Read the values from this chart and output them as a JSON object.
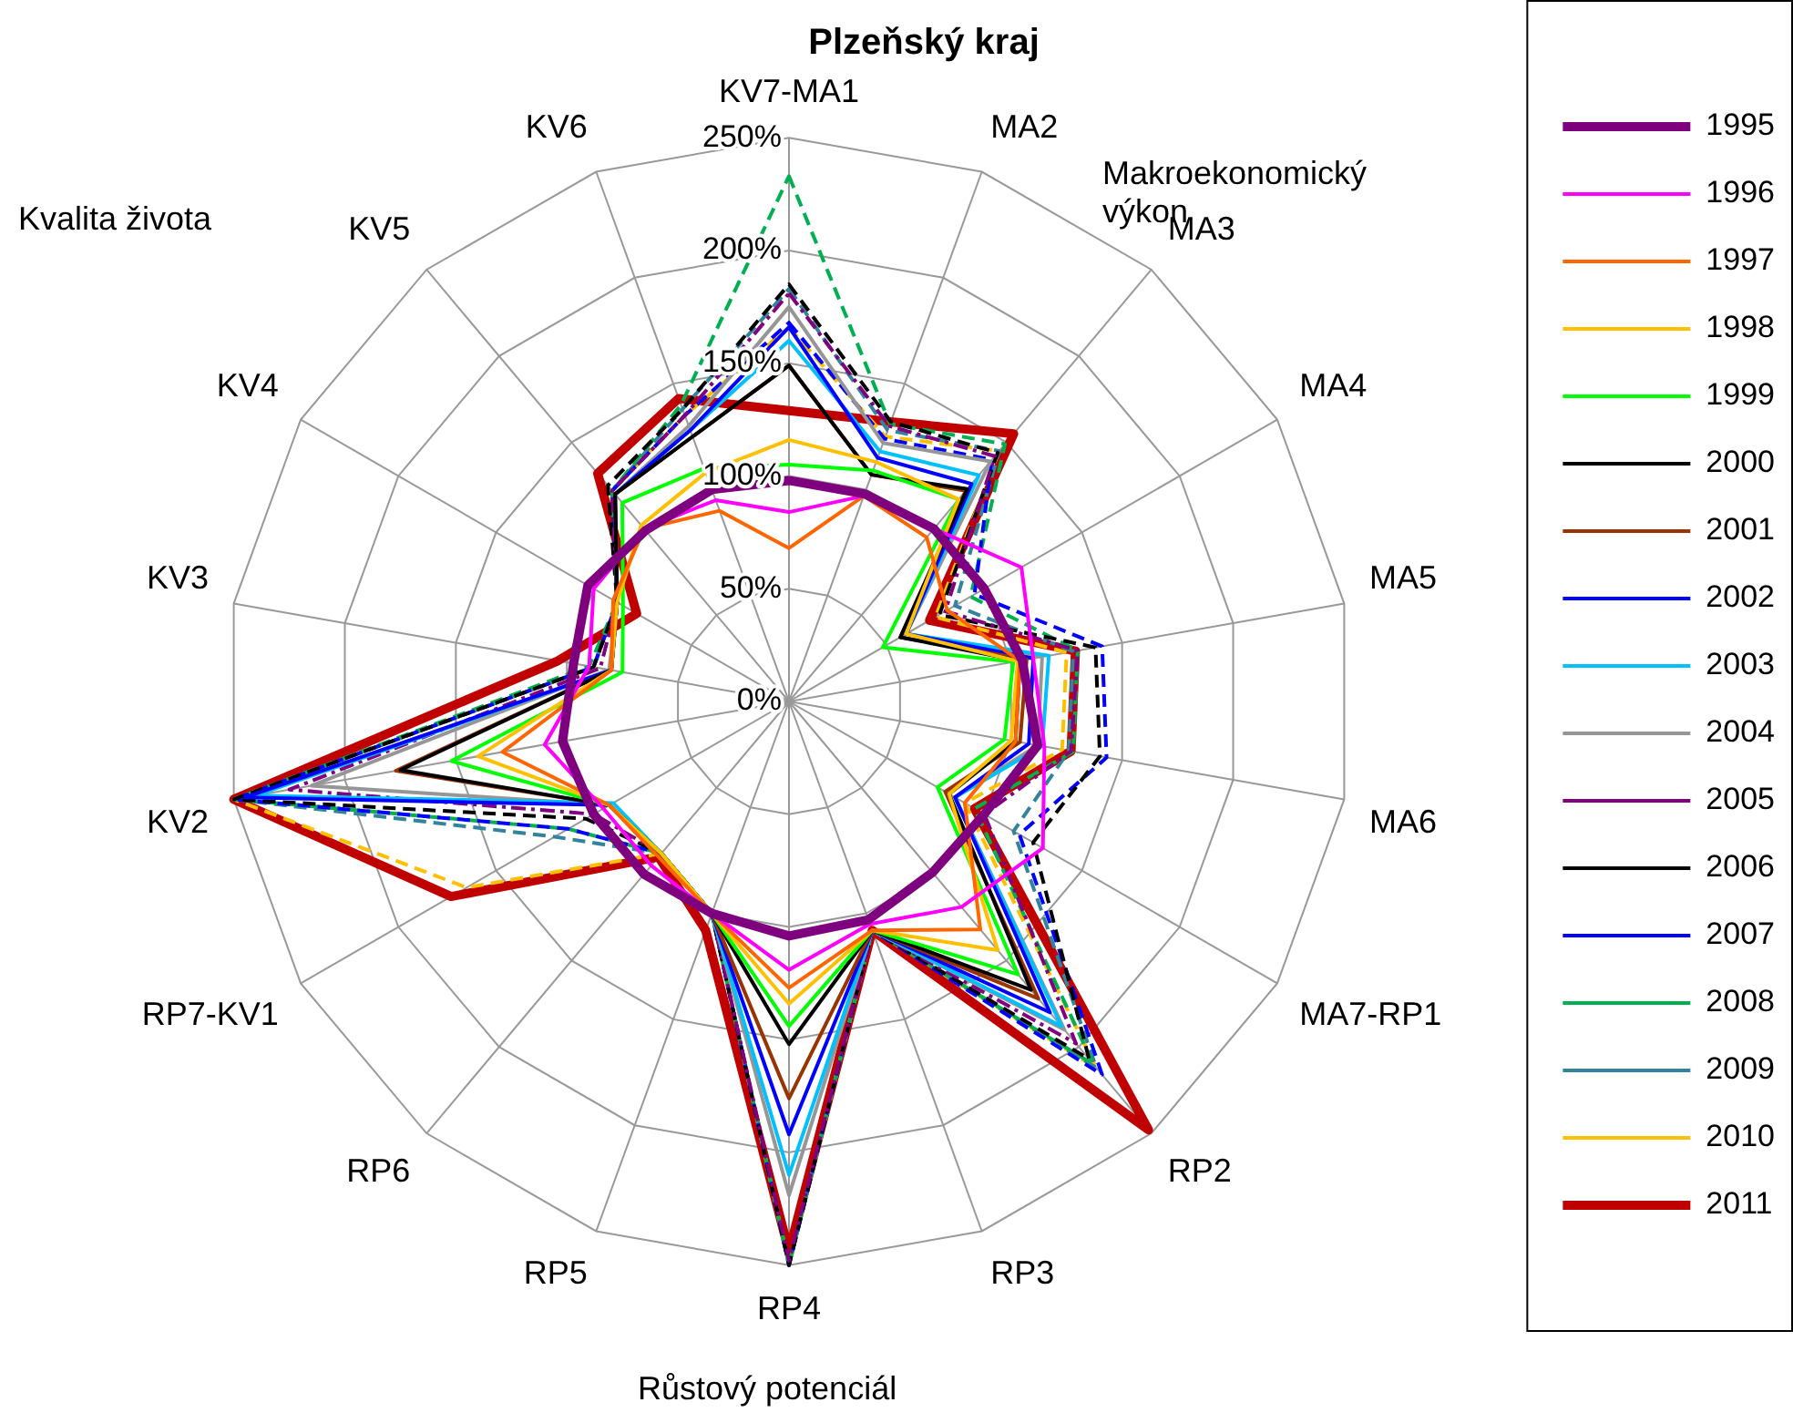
{
  "chart_data": {
    "type": "radar",
    "title": "Plzeňský kraj",
    "categories": [
      "KV7-MA1",
      "MA2",
      "MA3",
      "MA4",
      "MA5",
      "MA6",
      "MA7-RP1",
      "RP2",
      "RP3",
      "RP4",
      "RP5",
      "RP6",
      "RP7-KV1",
      "KV2",
      "KV3",
      "KV4",
      "KV5",
      "KV6"
    ],
    "ylim": [
      0,
      250
    ],
    "yticks": [
      {
        "value": 0,
        "label": "0%"
      },
      {
        "value": 50,
        "label": "50%"
      },
      {
        "value": 100,
        "label": "100%"
      },
      {
        "value": 150,
        "label": "150%"
      },
      {
        "value": 200,
        "label": "200%"
      },
      {
        "value": 250,
        "label": "250%"
      }
    ],
    "grid": true,
    "legend": "right",
    "marker": "none",
    "annotations": [
      "Kvalita  života",
      "Makroekonomický výkon",
      "Růstový  potenciál"
    ],
    "series": [
      {
        "name": "1995",
        "color": "#7f007f",
        "line_style": "solid",
        "values": [
          98,
          98,
          100,
          100,
          105,
          112,
          100,
          99,
          103,
          104,
          100,
          100,
          100,
          102,
          97,
          103,
          99,
          100
        ]
      },
      {
        "name": "1996",
        "color": "#ff00ff",
        "line_style": "solid",
        "values": [
          84,
          97,
          100,
          119,
          110,
          115,
          130,
          119,
          105,
          119,
          100,
          95,
          95,
          110,
          90,
          100,
          100,
          95
        ]
      },
      {
        "name": "1997",
        "color": "#ff6600",
        "line_style": "solid",
        "values": [
          68,
          97,
          95,
          81,
          104,
          102,
          90,
          132,
          108,
          127,
          100,
          90,
          92,
          129,
          80,
          90,
          100,
          90
        ]
      },
      {
        "name": "1998",
        "color": "#ffc000",
        "line_style": "solid",
        "values": [
          116,
          113,
          117,
          60,
          103,
          100,
          82,
          144,
          108,
          134,
          100,
          88,
          92,
          140,
          80,
          88,
          102,
          108
        ]
      },
      {
        "name": "1999",
        "color": "#00ff00",
        "line_style": "solid",
        "values": [
          105,
          109,
          117,
          48,
          101,
          97,
          76,
          158,
          108,
          144,
          100,
          88,
          92,
          152,
          75,
          85,
          115,
          110
        ]
      },
      {
        "name": "2000",
        "color": "#000000",
        "line_style": "solid",
        "values": [
          149,
          107,
          123,
          57,
          104,
          102,
          82,
          167,
          108,
          152,
          100,
          88,
          92,
          175,
          80,
          88,
          120,
          125
        ]
      },
      {
        "name": "2001",
        "color": "#993300",
        "line_style": "solid",
        "values": [
          149,
          107,
          122,
          57,
          107,
          104,
          80,
          172,
          108,
          176,
          100,
          88,
          92,
          177,
          80,
          88,
          120,
          125
        ]
      },
      {
        "name": "2002",
        "color": "#0000ff",
        "line_style": "solid",
        "values": [
          166,
          115,
          126,
          60,
          110,
          108,
          85,
          180,
          108,
          192,
          100,
          88,
          92,
          245,
          80,
          88,
          120,
          128
        ]
      },
      {
        "name": "2003",
        "color": "#00c0ff",
        "line_style": "solid",
        "values": [
          160,
          118,
          131,
          60,
          117,
          114,
          85,
          188,
          108,
          210,
          100,
          88,
          90,
          240,
          80,
          88,
          120,
          128
        ]
      },
      {
        "name": "2004",
        "color": "#969696",
        "line_style": "solid",
        "values": [
          175,
          122,
          139,
          60,
          114,
          112,
          85,
          190,
          108,
          219,
          100,
          88,
          92,
          215,
          81,
          88,
          120,
          130
        ]
      },
      {
        "name": "2005",
        "color": "#800080",
        "line_style": "dashdot",
        "values": [
          181,
          130,
          142,
          80,
          130,
          127,
          100,
          198,
          108,
          248,
          100,
          88,
          100,
          225,
          85,
          88,
          122,
          135
        ]
      },
      {
        "name": "2006",
        "color": "#000000",
        "line_style": "dashed",
        "values": [
          185,
          132,
          144,
          77,
          138,
          140,
          125,
          207,
          108,
          250,
          100,
          88,
          104,
          250,
          88,
          88,
          125,
          138
        ]
      },
      {
        "name": "2007",
        "color": "#0000ff",
        "line_style": "dashed",
        "values": [
          168,
          124,
          140,
          95,
          141,
          143,
          118,
          216,
          108,
          250,
          100,
          88,
          113,
          250,
          88,
          88,
          122,
          135
        ]
      },
      {
        "name": "2008",
        "color": "#00b050",
        "line_style": "dashed",
        "values": [
          233,
          131,
          149,
          93,
          130,
          128,
          95,
          210,
          108,
          250,
          100,
          88,
          113,
          250,
          90,
          88,
          122,
          140
        ]
      },
      {
        "name": "2009",
        "color": "#31849b",
        "line_style": "dashed",
        "values": [
          183,
          128,
          145,
          85,
          128,
          126,
          115,
          212,
          108,
          250,
          100,
          88,
          120,
          250,
          88,
          88,
          122,
          138
        ]
      },
      {
        "name": "2010",
        "color": "#ffc000",
        "line_style": "dashed",
        "values": [
          166,
          125,
          145,
          75,
          125,
          123,
          90,
          212,
          108,
          250,
          100,
          88,
          165,
          250,
          88,
          88,
          122,
          135
        ]
      },
      {
        "name": "2011",
        "color": "#c00000",
        "line_style": "solid",
        "values": [
          129,
          132,
          155,
          72,
          129,
          127,
          95,
          248,
          108,
          244,
          108,
          90,
          173,
          250,
          104,
          78,
          132,
          143
        ]
      }
    ]
  }
}
